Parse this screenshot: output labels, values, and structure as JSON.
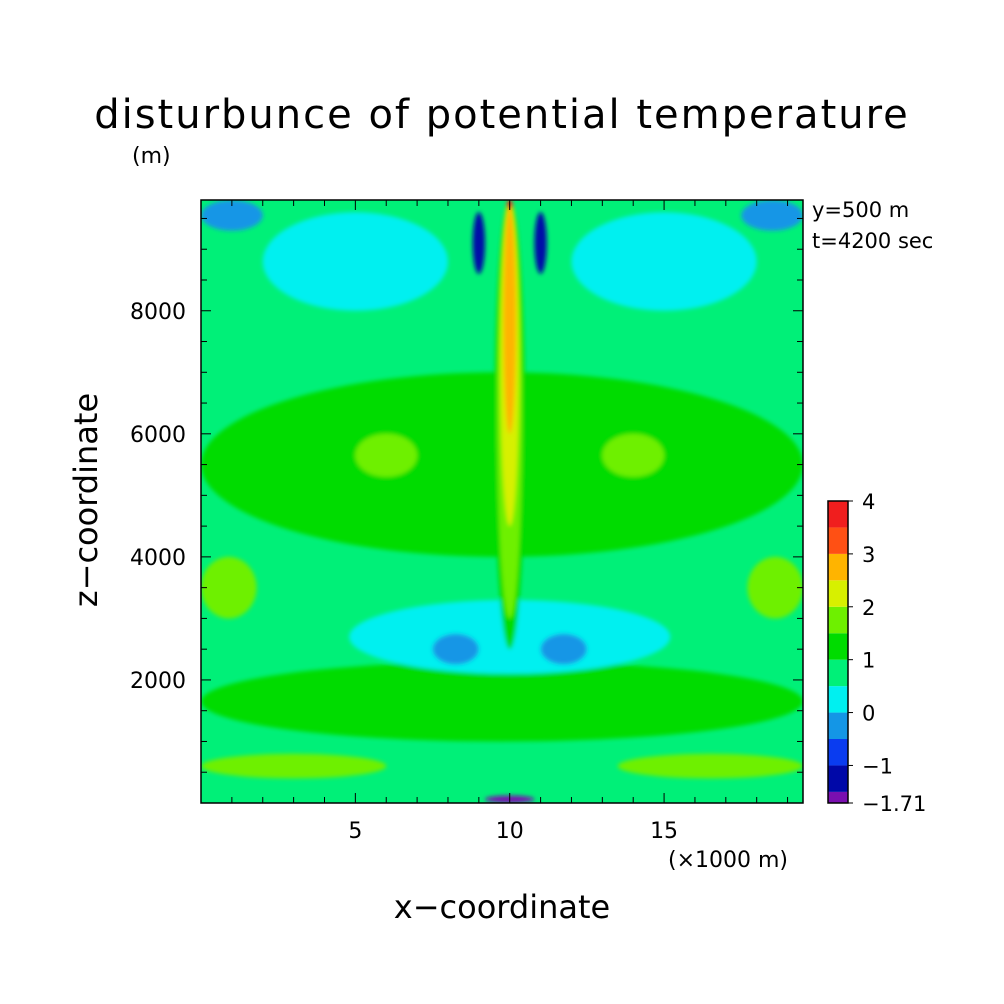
{
  "chart_data": {
    "type": "heatmap",
    "title": "disturbunce of potential temperature",
    "xlabel": "x−coordinate",
    "ylabel": "z−coordinate",
    "x_unit": "(×1000 m)",
    "y_unit": "(m)",
    "annotations": [
      "y=500 m",
      "t=4200 sec"
    ],
    "xlim": [
      0,
      19.5
    ],
    "ylim": [
      0,
      9800
    ],
    "x_ticks": [
      {
        "value": 5,
        "label": "5"
      },
      {
        "value": 10,
        "label": "10"
      },
      {
        "value": 15,
        "label": "15"
      }
    ],
    "y_ticks": [
      {
        "value": 2000,
        "label": "2000"
      },
      {
        "value": 4000,
        "label": "4000"
      },
      {
        "value": 6000,
        "label": "6000"
      },
      {
        "value": 8000,
        "label": "8000"
      }
    ],
    "colorbar": {
      "min": -1.71,
      "max": 4,
      "levels": [
        -1.71,
        -1.5,
        -1,
        -0.5,
        0,
        0.5,
        1,
        1.5,
        2,
        2.5,
        3,
        3.5,
        4
      ],
      "colors": [
        "#7a0fb0",
        "#0008a8",
        "#0a3cf0",
        "#1496e6",
        "#00f0f0",
        "#00f078",
        "#00dc00",
        "#6ef000",
        "#d7f000",
        "#ffb400",
        "#ff5014",
        "#f01e1e"
      ],
      "tick_labels": [
        {
          "value": 4,
          "label": "4"
        },
        {
          "value": 3,
          "label": "3"
        },
        {
          "value": 2,
          "label": "2"
        },
        {
          "value": 1,
          "label": "1"
        },
        {
          "value": 0,
          "label": "0"
        },
        {
          "value": -1,
          "label": "−1"
        },
        {
          "value": -1.71,
          "label": "−1.71"
        }
      ]
    },
    "field_regions": [
      {
        "level": "0.5-1",
        "region": "background"
      },
      {
        "level": "3.5-4",
        "x": [
          9.9,
          10.1
        ],
        "z": [
          9650,
          9800
        ]
      },
      {
        "level": "2.5-3",
        "x": [
          9.8,
          10.2
        ],
        "z": [
          6000,
          9700
        ]
      },
      {
        "level": "2-2.5",
        "x": [
          9.7,
          10.3
        ],
        "z": [
          4500,
          9800
        ]
      },
      {
        "level": "1.5-2",
        "x": [
          9.6,
          10.4
        ],
        "z": [
          3000,
          9800
        ]
      },
      {
        "level": "1-1.5",
        "x": [
          9.5,
          10.5
        ],
        "z": [
          2500,
          9800
        ]
      },
      {
        "level": "-1.5--1",
        "x": [
          8.8,
          9.2
        ],
        "z": [
          8600,
          9600
        ]
      },
      {
        "level": "-1.5--1",
        "x": [
          10.8,
          11.2
        ],
        "z": [
          8600,
          9600
        ]
      },
      {
        "level": "-1.71--1.5",
        "x": [
          9.2,
          10.8
        ],
        "z": [
          0,
          120
        ]
      },
      {
        "level": "0-0.5",
        "x": [
          4.8,
          15.2
        ],
        "z": [
          2100,
          3300
        ]
      },
      {
        "level": "-0.5-0",
        "x": [
          7.5,
          9.0
        ],
        "z": [
          2250,
          2750
        ]
      },
      {
        "level": "-0.5-0",
        "x": [
          11.0,
          12.5
        ],
        "z": [
          2250,
          2750
        ]
      },
      {
        "level": "1.5-2",
        "x": [
          5.0,
          7.0
        ],
        "z": [
          5300,
          6000
        ]
      },
      {
        "level": "1.5-2",
        "x": [
          13.0,
          15.0
        ],
        "z": [
          5300,
          6000
        ]
      },
      {
        "level": "0-0.5",
        "x": [
          2.0,
          8.0
        ],
        "z": [
          8000,
          9600
        ]
      },
      {
        "level": "0-0.5",
        "x": [
          12.0,
          18.0
        ],
        "z": [
          8000,
          9600
        ]
      },
      {
        "level": "-0.5-0",
        "x": [
          0,
          2.0
        ],
        "z": [
          9300,
          9800
        ]
      },
      {
        "level": "-0.5-0",
        "x": [
          17.5,
          19.5
        ],
        "z": [
          9300,
          9800
        ]
      },
      {
        "level": "1.5-2",
        "x": [
          0,
          1.8
        ],
        "z": [
          3000,
          4000
        ]
      },
      {
        "level": "1.5-2",
        "x": [
          17.7,
          19.5
        ],
        "z": [
          3000,
          4000
        ]
      },
      {
        "level": "1.5-2",
        "x": [
          0,
          6.0
        ],
        "z": [
          400,
          800
        ]
      },
      {
        "level": "1.5-2",
        "x": [
          13.5,
          19.5
        ],
        "z": [
          400,
          800
        ]
      },
      {
        "level": "1-1.5",
        "x": [
          0,
          19.5
        ],
        "z": [
          1000,
          2300
        ]
      },
      {
        "level": "1-1.5",
        "x": [
          0,
          19.5
        ],
        "z": [
          4000,
          7000
        ]
      }
    ]
  }
}
